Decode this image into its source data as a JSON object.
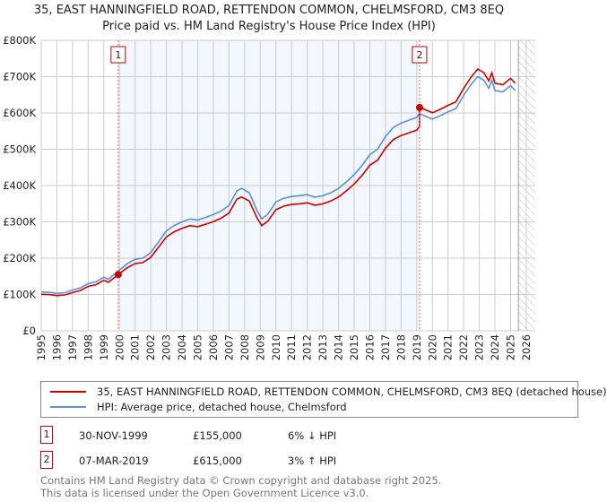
{
  "chart_data": {
    "type": "line",
    "title": "35, EAST HANNINGFIELD ROAD, RETTENDON COMMON, CHELMSFORD, CM3 8EQ",
    "subtitle": "Price paid vs. HM Land Registry's House Price Index (HPI)",
    "xlim": [
      1995,
      2026
    ],
    "ylim": [
      0,
      800000
    ],
    "x_ticks": [
      "1995",
      "1996",
      "1997",
      "1998",
      "1999",
      "2000",
      "2001",
      "2002",
      "2003",
      "2004",
      "2005",
      "2006",
      "2007",
      "2008",
      "2009",
      "2010",
      "2011",
      "2012",
      "2013",
      "2014",
      "2015",
      "2016",
      "2017",
      "2018",
      "2019",
      "2020",
      "2021",
      "2022",
      "2023",
      "2024",
      "2025",
      "2026"
    ],
    "y_ticks": [
      {
        "v": 0,
        "label": "£0"
      },
      {
        "v": 100000,
        "label": "£100K"
      },
      {
        "v": 200000,
        "label": "£200K"
      },
      {
        "v": 300000,
        "label": "£300K"
      },
      {
        "v": 400000,
        "label": "£400K"
      },
      {
        "v": 500000,
        "label": "£500K"
      },
      {
        "v": 600000,
        "label": "£600K"
      },
      {
        "v": 700000,
        "label": "£700K"
      },
      {
        "v": 800000,
        "label": "£800K"
      }
    ],
    "grid": true,
    "shaded_range": [
      1999.92,
      2019.18
    ],
    "forecast_hatch_from": 2025.5,
    "series": [
      {
        "name": "35, EAST HANNINGFIELD ROAD, RETTENDON COMMON, CHELMSFORD, CM3 8EQ (detached house)",
        "color": "#cc0000",
        "factor_before": 0.94,
        "factor_after": 1.03,
        "change_at": 2019.18
      },
      {
        "name": "HPI: Average price, detached house, Chelmsford",
        "color": "#5b8fd6",
        "points": [
          [
            1995,
            107000
          ],
          [
            1995.5,
            106000
          ],
          [
            1996,
            103000
          ],
          [
            1996.5,
            105000
          ],
          [
            1997,
            112000
          ],
          [
            1997.5,
            118000
          ],
          [
            1998,
            130000
          ],
          [
            1998.5,
            135000
          ],
          [
            1999,
            148000
          ],
          [
            1999.3,
            142000
          ],
          [
            1999.92,
            165000
          ],
          [
            2000.5,
            185000
          ],
          [
            2001,
            197000
          ],
          [
            2001.5,
            200000
          ],
          [
            2002,
            215000
          ],
          [
            2002.5,
            245000
          ],
          [
            2003,
            275000
          ],
          [
            2003.5,
            290000
          ],
          [
            2004,
            300000
          ],
          [
            2004.5,
            308000
          ],
          [
            2005,
            305000
          ],
          [
            2005.5,
            312000
          ],
          [
            2006,
            320000
          ],
          [
            2006.5,
            330000
          ],
          [
            2007,
            345000
          ],
          [
            2007.5,
            385000
          ],
          [
            2007.8,
            392000
          ],
          [
            2008.3,
            380000
          ],
          [
            2008.8,
            330000
          ],
          [
            2009.1,
            308000
          ],
          [
            2009.5,
            322000
          ],
          [
            2010,
            355000
          ],
          [
            2010.5,
            365000
          ],
          [
            2011,
            370000
          ],
          [
            2011.5,
            372000
          ],
          [
            2012,
            375000
          ],
          [
            2012.5,
            368000
          ],
          [
            2013,
            372000
          ],
          [
            2013.5,
            380000
          ],
          [
            2014,
            392000
          ],
          [
            2014.5,
            410000
          ],
          [
            2015,
            430000
          ],
          [
            2015.5,
            455000
          ],
          [
            2016,
            485000
          ],
          [
            2016.5,
            500000
          ],
          [
            2017,
            535000
          ],
          [
            2017.5,
            560000
          ],
          [
            2018,
            572000
          ],
          [
            2018.5,
            580000
          ],
          [
            2019,
            588000
          ],
          [
            2019.18,
            598000
          ],
          [
            2019.6,
            590000
          ],
          [
            2020,
            583000
          ],
          [
            2020.5,
            592000
          ],
          [
            2021,
            603000
          ],
          [
            2021.5,
            612000
          ],
          [
            2022,
            648000
          ],
          [
            2022.5,
            680000
          ],
          [
            2022.9,
            700000
          ],
          [
            2023.3,
            690000
          ],
          [
            2023.6,
            668000
          ],
          [
            2023.8,
            690000
          ],
          [
            2024,
            662000
          ],
          [
            2024.5,
            658000
          ],
          [
            2025,
            675000
          ],
          [
            2025.3,
            662000
          ]
        ]
      }
    ],
    "sales": [
      {
        "id": "1",
        "x": 1999.92,
        "y": 155000
      },
      {
        "id": "2",
        "x": 2019.18,
        "y": 615000
      }
    ]
  },
  "legend": {
    "red": "35, EAST HANNINGFIELD ROAD, RETTENDON COMMON, CHELMSFORD, CM3 8EQ (detached house)",
    "blue": "HPI: Average price, detached house, Chelmsford"
  },
  "table": [
    {
      "id": "1",
      "date": "30-NOV-1999",
      "price": "£155,000",
      "hpi": "6% ↓ HPI"
    },
    {
      "id": "2",
      "date": "07-MAR-2019",
      "price": "£615,000",
      "hpi": "3% ↑ HPI"
    }
  ],
  "footer": {
    "line1": "Contains HM Land Registry data © Crown copyright and database right 2025.",
    "line2": "This data is licensed under the Open Government Licence v3.0."
  }
}
